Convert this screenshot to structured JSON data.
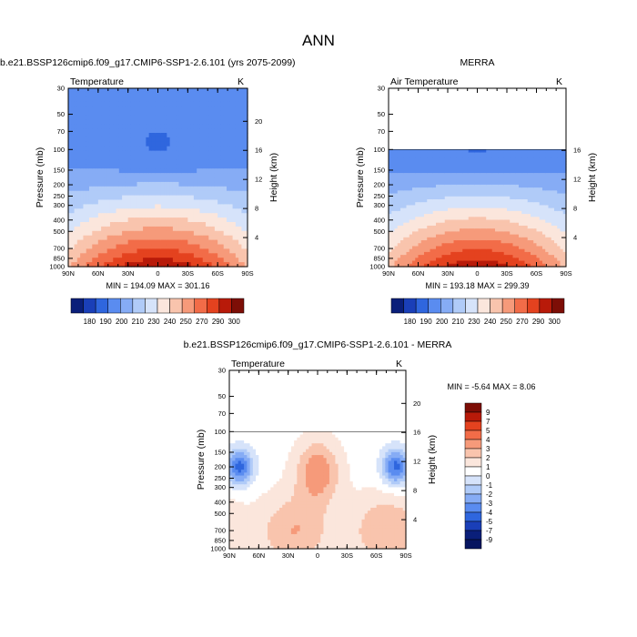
{
  "figure": {
    "title": "ANN"
  },
  "chart_data": [
    {
      "id": "model",
      "type": "heatmap",
      "title": "b.e21.BSSP126cmip6.f09_g17.CMIP6-SSP1-2.6.101 (yrs 2075-2099)",
      "subtitle_left": "Temperature",
      "subtitle_right": "K",
      "ylabel": "Pressure (mb)",
      "y2label": "Height (km)",
      "x_ticks": [
        "90N",
        "60N",
        "30N",
        "0",
        "30S",
        "60S",
        "90S"
      ],
      "x_ticks_values": [
        90,
        60,
        30,
        0,
        -30,
        -60,
        -90
      ],
      "y_ticks": [
        "30",
        "50",
        "70",
        "100",
        "150",
        "200",
        "250",
        "300",
        "400",
        "500",
        "700",
        "850",
        "1000"
      ],
      "y_ticks_values": [
        30,
        50,
        70,
        100,
        150,
        200,
        250,
        300,
        400,
        500,
        700,
        850,
        1000
      ],
      "y2_ticks": [
        "20",
        "16",
        "12",
        "8",
        "4"
      ],
      "y2_ticks_values": [
        20,
        16,
        12,
        8,
        4
      ],
      "ylim": [
        1000,
        30
      ],
      "ylog": true,
      "data_top_mb": 30,
      "min": 194.09,
      "max": 301.16,
      "stats_text": "MIN = 194.09   MAX = 301.16",
      "colorbar": {
        "orientation": "horizontal",
        "labels": [
          "180",
          "190",
          "200",
          "210",
          "230",
          "240",
          "250",
          "270",
          "290",
          "300"
        ],
        "levels": [
          180,
          190,
          200,
          210,
          220,
          230,
          240,
          250,
          260,
          270,
          280,
          290,
          300
        ]
      }
    },
    {
      "id": "obs",
      "type": "heatmap",
      "title": "MERRA",
      "subtitle_left": "Air Temperature",
      "subtitle_right": "K",
      "ylabel": "Pressure (mb)",
      "y2label": "Height (km)",
      "x_ticks": [
        "90N",
        "60N",
        "30N",
        "0",
        "30S",
        "60S",
        "90S"
      ],
      "x_ticks_values": [
        90,
        60,
        30,
        0,
        -30,
        -60,
        -90
      ],
      "y_ticks": [
        "30",
        "50",
        "70",
        "100",
        "150",
        "200",
        "250",
        "300",
        "400",
        "500",
        "700",
        "850",
        "1000"
      ],
      "y_ticks_values": [
        30,
        50,
        70,
        100,
        150,
        200,
        250,
        300,
        400,
        500,
        700,
        850,
        1000
      ],
      "y2_ticks": [
        "16",
        "12",
        "8",
        "4"
      ],
      "y2_ticks_values": [
        16,
        12,
        8,
        4
      ],
      "ylim": [
        1000,
        30
      ],
      "ylog": true,
      "data_top_mb": 100,
      "min": 193.18,
      "max": 299.39,
      "stats_text": "MIN = 193.18   MAX = 299.39",
      "colorbar": {
        "orientation": "horizontal",
        "labels": [
          "180",
          "190",
          "200",
          "210",
          "230",
          "240",
          "250",
          "270",
          "290",
          "300"
        ],
        "levels": [
          180,
          190,
          200,
          210,
          220,
          230,
          240,
          250,
          260,
          270,
          280,
          290,
          300
        ]
      }
    },
    {
      "id": "diff",
      "type": "heatmap",
      "title": "b.e21.BSSP126cmip6.f09_g17.CMIP6-SSP1-2.6.101 - MERRA",
      "subtitle_left": "Temperature",
      "subtitle_right": "K",
      "ylabel": "Pressure (mb)",
      "y2label": "Height (km)",
      "x_ticks": [
        "90N",
        "60N",
        "30N",
        "0",
        "30S",
        "60S",
        "90S"
      ],
      "x_ticks_values": [
        90,
        60,
        30,
        0,
        -30,
        -60,
        -90
      ],
      "y_ticks": [
        "30",
        "50",
        "70",
        "100",
        "150",
        "200",
        "250",
        "300",
        "400",
        "500",
        "700",
        "850",
        "1000"
      ],
      "y_ticks_values": [
        30,
        50,
        70,
        100,
        150,
        200,
        250,
        300,
        400,
        500,
        700,
        850,
        1000
      ],
      "y2_ticks": [
        "20",
        "16",
        "12",
        "8",
        "4"
      ],
      "y2_ticks_values": [
        20,
        16,
        12,
        8,
        4
      ],
      "ylim": [
        1000,
        30
      ],
      "ylog": true,
      "data_top_mb": 100,
      "min": -5.64,
      "max": 8.06,
      "stats_text": "MIN =  -5.64   MAX =   8.06",
      "colorbar": {
        "orientation": "vertical",
        "labels": [
          "9",
          "7",
          "5",
          "4",
          "3",
          "2",
          "1",
          "0",
          "-1",
          "-2",
          "-3",
          "-4",
          "-5",
          "-7",
          "-9"
        ],
        "levels": [
          9,
          7,
          5,
          4,
          3,
          2,
          1,
          0,
          -1,
          -2,
          -3,
          -4,
          -5,
          -7,
          -9
        ]
      }
    }
  ],
  "palettes": {
    "absolute": [
      "#0a1f7a",
      "#1a3fb8",
      "#2f66de",
      "#5a8cf0",
      "#86acf5",
      "#b0cbf8",
      "#d6e3fa",
      "#fbe6dc",
      "#f9c4ad",
      "#f69a7a",
      "#f26c48",
      "#e4421f",
      "#b81a09",
      "#7d0e06"
    ],
    "difference": [
      "#7d0e06",
      "#b81a09",
      "#e4421f",
      "#f26c48",
      "#f69a7a",
      "#f9c4ad",
      "#fbe6dc",
      "#ffffff",
      "#d6e3fa",
      "#b0cbf8",
      "#86acf5",
      "#5a8cf0",
      "#2f66de",
      "#1a3fb8",
      "#0a1f7a",
      "#061560"
    ]
  }
}
